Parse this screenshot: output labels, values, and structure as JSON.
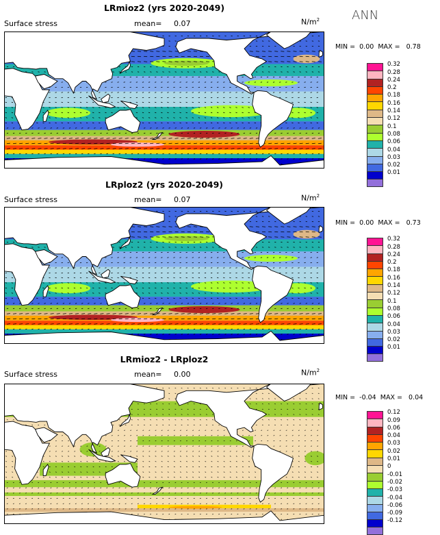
{
  "season": "ANN",
  "panels": [
    {
      "title": "LRmioz2 (yrs 2020-2049)",
      "variable": "Surface stress",
      "mean_label": "mean=",
      "mean_value": "0.07",
      "units": "N/m",
      "units_sup": "2",
      "min_label": "MIN =",
      "min_value": "0.00",
      "max_label": "MAX =",
      "max_value": "0.78",
      "scale": [
        {
          "label": "0.32",
          "color": "#ff1493"
        },
        {
          "label": "0.28",
          "color": "#ffb6c1"
        },
        {
          "label": "0.24",
          "color": "#b22222"
        },
        {
          "label": "0.2",
          "color": "#ff4500"
        },
        {
          "label": "0.18",
          "color": "#ffa500"
        },
        {
          "label": "0.16",
          "color": "#ffd700"
        },
        {
          "label": "0.14",
          "color": "#deb887"
        },
        {
          "label": "0.12",
          "color": "#f5deb3"
        },
        {
          "label": "0.1",
          "color": "#9acd32"
        },
        {
          "label": "0.08",
          "color": "#adff2f"
        },
        {
          "label": "0.06",
          "color": "#20b2aa"
        },
        {
          "label": "0.04",
          "color": "#add8e6"
        },
        {
          "label": "0.03",
          "color": "#87aeee"
        },
        {
          "label": "0.02",
          "color": "#4169e1"
        },
        {
          "label": "0.01",
          "color": "#0000cd"
        },
        {
          "label": "",
          "color": "#9370db"
        }
      ],
      "field": "stress"
    },
    {
      "title": "LRploz2 (yrs 2020-2049)",
      "variable": "Surface stress",
      "mean_label": "mean=",
      "mean_value": "0.07",
      "units": "N/m",
      "units_sup": "2",
      "min_label": "MIN =",
      "min_value": "0.00",
      "max_label": "MAX =",
      "max_value": "0.73",
      "scale": [
        {
          "label": "0.32",
          "color": "#ff1493"
        },
        {
          "label": "0.28",
          "color": "#ffb6c1"
        },
        {
          "label": "0.24",
          "color": "#b22222"
        },
        {
          "label": "0.2",
          "color": "#ff4500"
        },
        {
          "label": "0.18",
          "color": "#ffa500"
        },
        {
          "label": "0.16",
          "color": "#ffd700"
        },
        {
          "label": "0.14",
          "color": "#deb887"
        },
        {
          "label": "0.12",
          "color": "#f5deb3"
        },
        {
          "label": "0.1",
          "color": "#9acd32"
        },
        {
          "label": "0.08",
          "color": "#adff2f"
        },
        {
          "label": "0.06",
          "color": "#20b2aa"
        },
        {
          "label": "0.04",
          "color": "#add8e6"
        },
        {
          "label": "0.03",
          "color": "#87aeee"
        },
        {
          "label": "0.02",
          "color": "#4169e1"
        },
        {
          "label": "0.01",
          "color": "#0000cd"
        },
        {
          "label": "",
          "color": "#9370db"
        }
      ],
      "field": "stress"
    },
    {
      "title": "LRmioz2 - LRploz2",
      "variable": "Surface stress",
      "mean_label": "mean=",
      "mean_value": "0.00",
      "units": "N/m",
      "units_sup": "2",
      "min_label": "MIN =",
      "min_value": "-0.04",
      "max_label": "MAX =",
      "max_value": "0.04",
      "scale": [
        {
          "label": "0.12",
          "color": "#ff1493"
        },
        {
          "label": "0.09",
          "color": "#ffb6c1"
        },
        {
          "label": "0.06",
          "color": "#b22222"
        },
        {
          "label": "0.04",
          "color": "#ff4500"
        },
        {
          "label": "0.03",
          "color": "#ffa500"
        },
        {
          "label": "0.02",
          "color": "#ffd700"
        },
        {
          "label": "0.01",
          "color": "#deb887"
        },
        {
          "label": "0",
          "color": "#f5deb3"
        },
        {
          "label": "-0.01",
          "color": "#9acd32"
        },
        {
          "label": "-0.02",
          "color": "#adff2f"
        },
        {
          "label": "-0.03",
          "color": "#20b2aa"
        },
        {
          "label": "-0.04",
          "color": "#add8e6"
        },
        {
          "label": "-0.06",
          "color": "#87aeee"
        },
        {
          "label": "-0.09",
          "color": "#4169e1"
        },
        {
          "label": "-0.12",
          "color": "#0000cd"
        },
        {
          "label": "",
          "color": "#9370db"
        }
      ],
      "field": "diff"
    }
  ]
}
